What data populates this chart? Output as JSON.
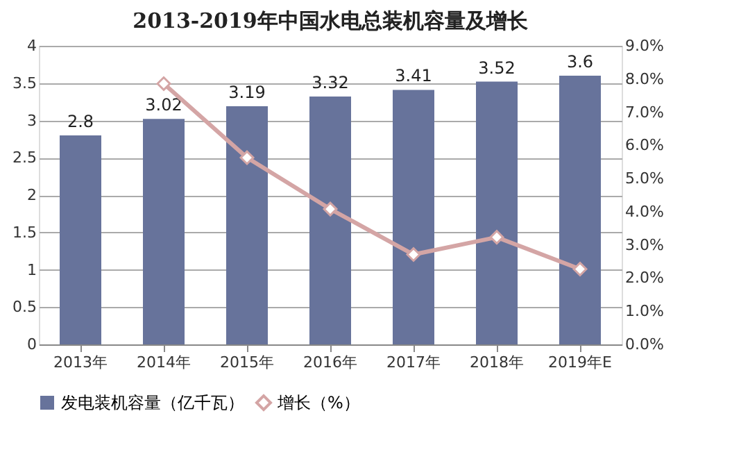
{
  "chart_data": {
    "type": "bar",
    "title": "2013-2019年中国水电总装机容量及增长",
    "categories": [
      "2013年",
      "2014年",
      "2015年",
      "2016年",
      "2017年",
      "2018年",
      "2019年E"
    ],
    "series": [
      {
        "name": "发电装机容量（亿千瓦）",
        "color": "#67739b",
        "values": [
          2.8,
          3.02,
          3.19,
          3.32,
          3.41,
          3.52,
          3.6
        ],
        "value_labels": [
          "2.8",
          "3.02",
          "3.19",
          "3.32",
          "3.41",
          "3.52",
          "3.6"
        ]
      },
      {
        "name": "增长（%）",
        "type": "line",
        "axis": "y2",
        "color": "#d4a5a5",
        "marker": "diamond",
        "values": [
          null,
          7.86,
          5.63,
          4.08,
          2.71,
          3.23,
          2.27
        ]
      }
    ],
    "ylim": [
      0,
      4
    ],
    "yticks": [
      0,
      0.5,
      1,
      1.5,
      2,
      2.5,
      3,
      3.5,
      4
    ],
    "y2lim": [
      0,
      9
    ],
    "y2ticks": [
      {
        "value": 0,
        "label": "0.0%"
      },
      {
        "value": 1,
        "label": "1.0%"
      },
      {
        "value": 2,
        "label": "2.0%"
      },
      {
        "value": 3,
        "label": "3.0%"
      },
      {
        "value": 4,
        "label": "4.0%"
      },
      {
        "value": 5,
        "label": "5.0%"
      },
      {
        "value": 6,
        "label": "6.0%"
      },
      {
        "value": 7,
        "label": "7.0%"
      },
      {
        "value": 8,
        "label": "8.0%"
      },
      {
        "value": 9,
        "label": "9.0%"
      }
    ],
    "grid": "y",
    "legend": "bottom"
  }
}
